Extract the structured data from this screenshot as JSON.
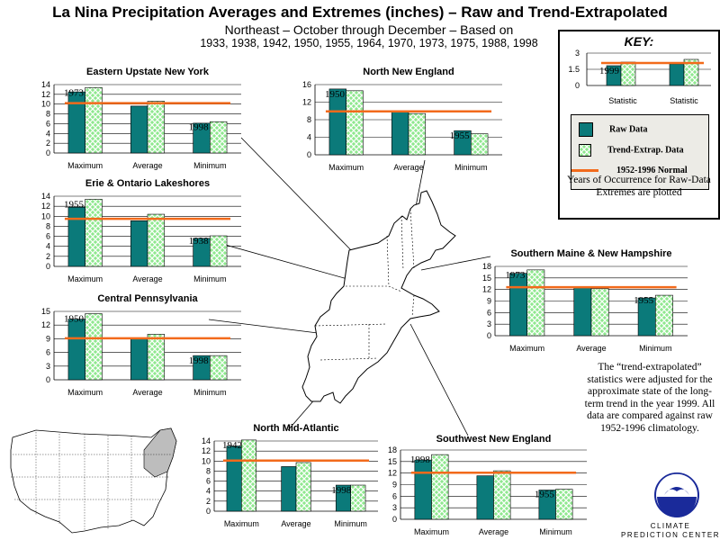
{
  "header": {
    "title": "La Nina Precipitation Averages and Extremes (inches) – Raw and Trend-Extrapolated",
    "subtitle_line1": "Northeast – October through December –  Based on",
    "subtitle_line2": "1933, 1938, 1942, 1950, 1955, 1964, 1970, 1973, 1975, 1988, 1998"
  },
  "key": {
    "title": "KEY:",
    "example_year": "1999",
    "example_ticks": [
      "0",
      "1.5",
      "3"
    ],
    "example_categories": [
      "Statistic",
      "Statistic"
    ],
    "legend": [
      {
        "label": "Raw Data",
        "color": "#0b7a7a"
      },
      {
        "label": "Trend-Extrap. Data",
        "color": "#8fe88f"
      },
      {
        "label": "1952-1996 Normal",
        "color": "#f26a1b"
      }
    ],
    "note": "Years of Occurrence for Raw-Data Extremes are plotted"
  },
  "side_note": "The “trend-extrapolated” statistics were adjusted for the approximate state of the long-term trend in the year 1999.  All data are compared against raw 1952-1996 climatology.",
  "footer": {
    "logo_label": "CLIMATE PREDICTION CENTER"
  },
  "colors": {
    "raw": "#0b7a7a",
    "trend": "#8fe88f",
    "normal": "#f26a1b"
  },
  "chart_data": [
    {
      "type": "bar",
      "title": "Eastern Upstate New York",
      "categories": [
        "Maximum",
        "Average",
        "Minimum"
      ],
      "series": [
        {
          "name": "Raw Data",
          "values": [
            12.5,
            9.6,
            6.1
          ]
        },
        {
          "name": "Trend-Extrap. Data",
          "values": [
            13.4,
            10.6,
            6.4
          ]
        }
      ],
      "normal": 10.2,
      "ylim": [
        0,
        14
      ],
      "yticks": [
        0,
        2,
        4,
        6,
        8,
        10,
        12,
        14
      ],
      "year_labels": [
        "1973",
        "",
        "1998"
      ]
    },
    {
      "type": "bar",
      "title": "North New England",
      "categories": [
        "Maximum",
        "Average",
        "Minimum"
      ],
      "series": [
        {
          "name": "Raw Data",
          "values": [
            15.0,
            9.8,
            5.5
          ]
        },
        {
          "name": "Trend-Extrap. Data",
          "values": [
            14.6,
            9.4,
            4.8
          ]
        }
      ],
      "normal": 9.9,
      "ylim": [
        0,
        16
      ],
      "yticks": [
        0,
        4,
        8,
        12,
        16
      ],
      "year_labels": [
        "1950",
        "",
        "1955"
      ]
    },
    {
      "type": "bar",
      "title": "Erie & Ontario Lakeshores",
      "categories": [
        "Maximum",
        "Average",
        "Minimum"
      ],
      "series": [
        {
          "name": "Raw Data",
          "values": [
            11.8,
            9.1,
            5.6
          ]
        },
        {
          "name": "Trend-Extrap. Data",
          "values": [
            13.4,
            10.4,
            6.1
          ]
        }
      ],
      "normal": 9.5,
      "ylim": [
        0,
        14
      ],
      "yticks": [
        0,
        2,
        4,
        6,
        8,
        10,
        12,
        14
      ],
      "year_labels": [
        "1955",
        "",
        "1938"
      ]
    },
    {
      "type": "bar",
      "title": "Southern Maine & New Hampshire",
      "categories": [
        "Maximum",
        "Average",
        "Minimum"
      ],
      "series": [
        {
          "name": "Raw Data",
          "values": [
            16.2,
            12.6,
            9.8
          ]
        },
        {
          "name": "Trend-Extrap. Data",
          "values": [
            17.1,
            12.2,
            10.5
          ]
        }
      ],
      "normal": 12.6,
      "ylim": [
        0,
        18
      ],
      "yticks": [
        0,
        3,
        6,
        9,
        12,
        15,
        18
      ],
      "year_labels": [
        "1973",
        "",
        "1955"
      ]
    },
    {
      "type": "bar",
      "title": "Central Pennsylvania",
      "categories": [
        "Maximum",
        "Average",
        "Minimum"
      ],
      "series": [
        {
          "name": "Raw Data",
          "values": [
            13.3,
            9.0,
            5.3
          ]
        },
        {
          "name": "Trend-Extrap. Data",
          "values": [
            14.5,
            10.0,
            5.3
          ]
        }
      ],
      "normal": 9.1,
      "ylim": [
        0,
        15
      ],
      "yticks": [
        0,
        3,
        6,
        9,
        12,
        15
      ],
      "year_labels": [
        "1950",
        "",
        "1998"
      ]
    },
    {
      "type": "bar",
      "title": "North Mid-Atlantic",
      "categories": [
        "Maximum",
        "Average",
        "Minimum"
      ],
      "series": [
        {
          "name": "Raw Data",
          "values": [
            13.0,
            8.9,
            5.2
          ]
        },
        {
          "name": "Trend-Extrap. Data",
          "values": [
            14.2,
            9.7,
            5.2
          ]
        }
      ],
      "normal": 10.1,
      "ylim": [
        0,
        14
      ],
      "yticks": [
        0,
        2,
        4,
        6,
        8,
        10,
        12,
        14
      ],
      "year_labels": [
        "1942",
        "",
        "1998"
      ]
    },
    {
      "type": "bar",
      "title": "Southwest New England",
      "categories": [
        "Maximum",
        "Average",
        "Minimum"
      ],
      "series": [
        {
          "name": "Raw Data",
          "values": [
            15.4,
            11.3,
            7.6
          ]
        },
        {
          "name": "Trend-Extrap. Data",
          "values": [
            16.8,
            12.6,
            7.8
          ]
        }
      ],
      "normal": 12.1,
      "ylim": [
        0,
        18
      ],
      "yticks": [
        0,
        3,
        6,
        9,
        12,
        15,
        18
      ],
      "year_labels": [
        "1998",
        "",
        "1955"
      ]
    }
  ]
}
